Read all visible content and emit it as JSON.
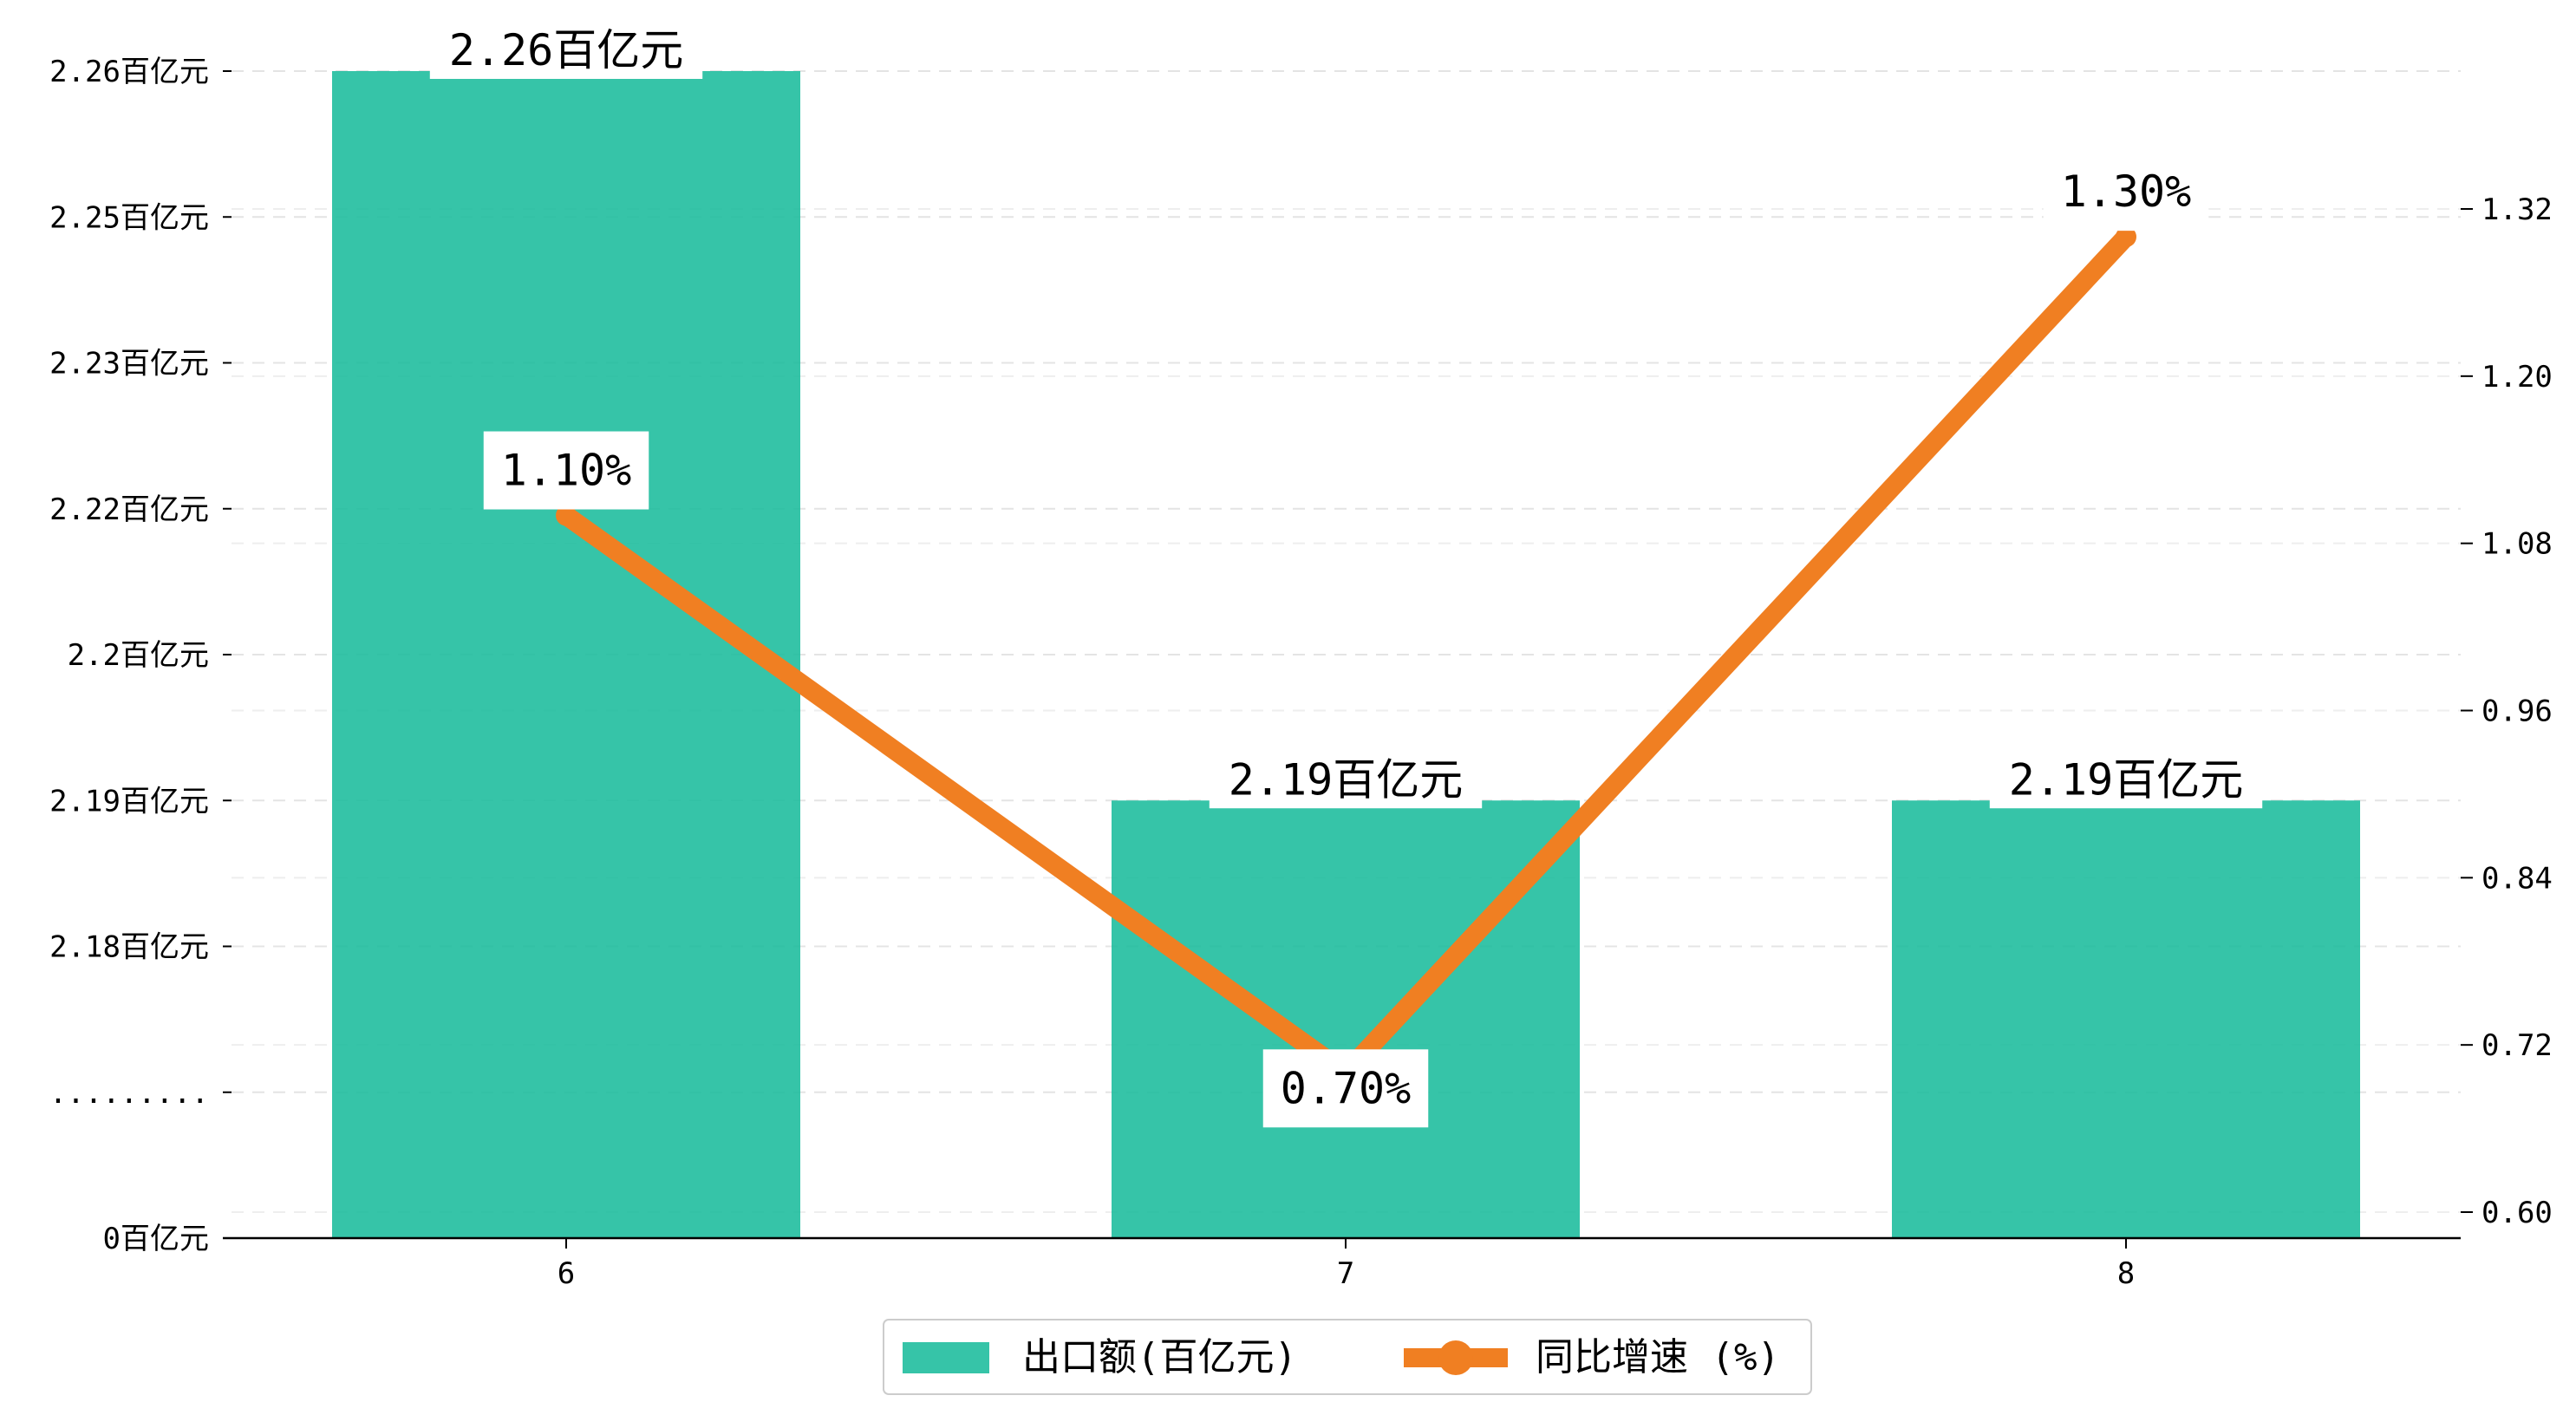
{
  "chart_data": {
    "type": "bar",
    "categories": [
      "6",
      "7",
      "8"
    ],
    "series": [
      {
        "name": "出口额(百亿元)",
        "type": "bar",
        "axis": "left",
        "values": [
          2.26,
          2.19,
          2.19
        ],
        "labels": [
          "2.26百亿元",
          "2.19百亿元",
          "2.19百亿元"
        ],
        "color": "#1abc9c"
      },
      {
        "name": "同比增速 (%)",
        "type": "line",
        "axis": "right",
        "values": [
          1.1,
          0.7,
          1.3
        ],
        "labels": [
          "1.10%",
          "0.70%",
          "1.30%"
        ],
        "color": "#f07f22"
      }
    ],
    "left_axis": {
      "broken": true,
      "ticks": [
        {
          "value": 0,
          "label": "0百亿元"
        },
        {
          "value": null,
          "label": "........."
        },
        {
          "value": 2.18,
          "label": "2.18百亿元"
        },
        {
          "value": 2.19,
          "label": "2.19百亿元"
        },
        {
          "value": 2.2,
          "label": "2.2百亿元"
        },
        {
          "value": 2.22,
          "label": "2.22百亿元"
        },
        {
          "value": 2.23,
          "label": "2.23百亿元"
        },
        {
          "value": 2.25,
          "label": "2.25百亿元"
        },
        {
          "value": 2.26,
          "label": "2.26百亿元"
        }
      ]
    },
    "right_axis": {
      "ylim": [
        0.58,
        1.42
      ],
      "ticks": [
        "0.60",
        "0.72",
        "0.84",
        "0.96",
        "1.08",
        "1.20",
        "1.32"
      ]
    },
    "grid": "horizontal-dashed",
    "legend": "bottom-center"
  }
}
